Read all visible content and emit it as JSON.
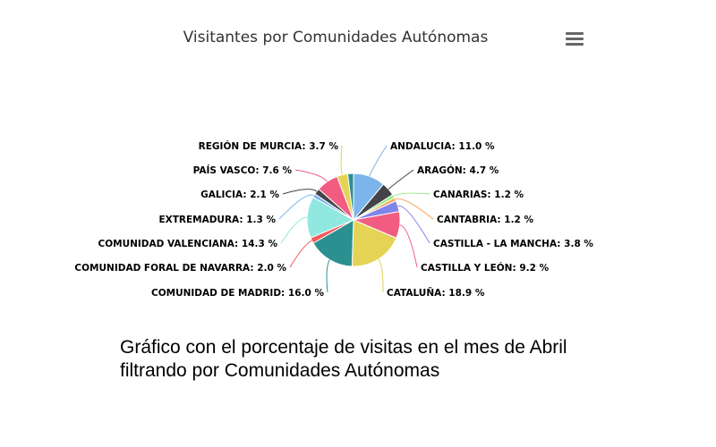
{
  "menu_icon": "hamburger-menu-icon",
  "caption": {
    "line1": "Gráfico con el porcentaje de visitas en el mes de Abril",
    "line2": "filtrando por Comunidades Autónomas"
  },
  "chart_data": {
    "type": "pie",
    "title": "Visitantes por Comunidades Autónomas",
    "slices": [
      {
        "name": "ANDALUCIA",
        "value": 11.0,
        "label": "ANDALUCIA: 11.0 %",
        "color": "#7cb5ec"
      },
      {
        "name": "ARAGÓN",
        "value": 4.7,
        "label": "ARAGÓN: 4.7 %",
        "color": "#434348"
      },
      {
        "name": "CANARIAS",
        "value": 1.2,
        "label": "CANARIAS: 1.2 %",
        "color": "#90ed7d"
      },
      {
        "name": "CANTABRIA",
        "value": 1.2,
        "label": "CANTABRIA: 1.2 %",
        "color": "#f7a35c"
      },
      {
        "name": "CASTILLA - LA MANCHA",
        "value": 3.8,
        "label": "CASTILLA - LA MANCHA: 3.8 %",
        "color": "#8085e9"
      },
      {
        "name": "CASTILLA Y LEÓN",
        "value": 9.2,
        "label": "CASTILLA Y LEÓN: 9.2 %",
        "color": "#f15c80"
      },
      {
        "name": "CATALUÑA",
        "value": 18.9,
        "label": "CATALUÑA: 18.9 %",
        "color": "#e4d354"
      },
      {
        "name": "COMUNIDAD DE MADRID",
        "value": 16.0,
        "label": "COMUNIDAD DE MADRID: 16.0 %",
        "color": "#2b908f"
      },
      {
        "name": "COMUNIDAD FORAL DE NAVARRA",
        "value": 2.0,
        "label": "COMUNIDAD FORAL DE NAVARRA: 2.0 %",
        "color": "#f45b5b"
      },
      {
        "name": "COMUNIDAD VALENCIANA",
        "value": 14.3,
        "label": "COMUNIDAD VALENCIANA: 14.3 %",
        "color": "#91e8e1"
      },
      {
        "name": "EXTREMADURA",
        "value": 1.3,
        "label": "EXTREMADURA: 1.3 %",
        "color": "#7cb5ec"
      },
      {
        "name": "GALICIA",
        "value": 2.1,
        "label": "GALICIA: 2.1 %",
        "color": "#434348"
      },
      {
        "name": "PAÍS VASCO",
        "value": 7.6,
        "label": "PAÍS VASCO: 7.6 %",
        "color": "#f15c80"
      },
      {
        "name": "REGIÓN DE MURCIA",
        "value": 3.7,
        "label": "REGIÓN DE MURCIA: 3.7 %",
        "color": "#e4d354"
      },
      {
        "name": "",
        "value": 2.0,
        "label": "",
        "color": "#2b908f"
      }
    ]
  }
}
